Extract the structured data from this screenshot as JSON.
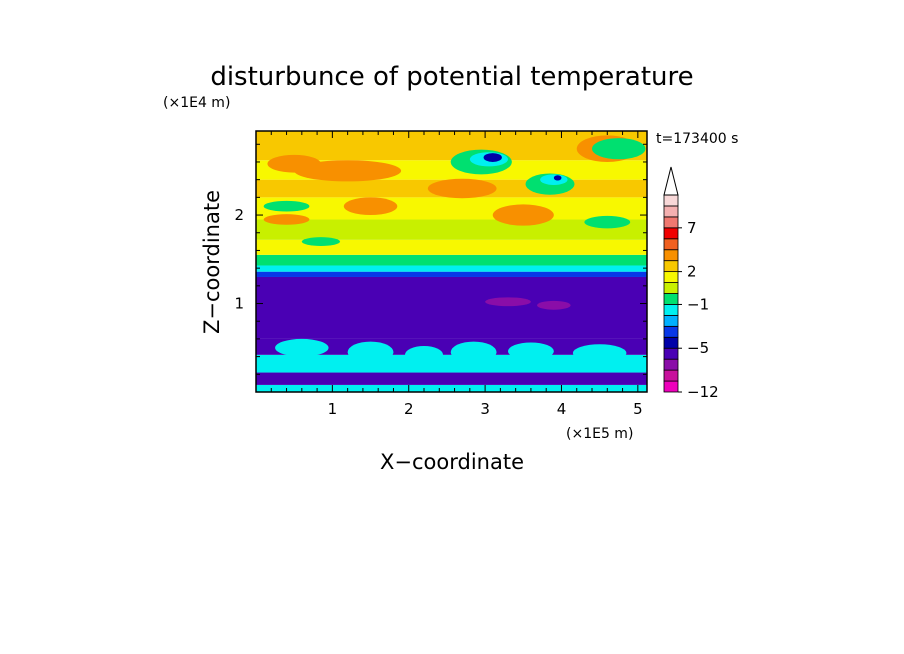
{
  "chart_data": {
    "type": "heatmap",
    "title": "disturbunce of potential temperature",
    "time_label": "t=173400 s",
    "xlabel": "X−coordinate",
    "ylabel": "Z−coordinate",
    "x_scale_label": "(×1E5 m)",
    "y_scale_label": "(×1E4 m)",
    "xlim": [
      0,
      5.12
    ],
    "ylim": [
      0,
      2.95
    ],
    "x_ticks": [
      {
        "value": 1,
        "label": "1"
      },
      {
        "value": 2,
        "label": "2"
      },
      {
        "value": 3,
        "label": "3"
      },
      {
        "value": 4,
        "label": "4"
      },
      {
        "value": 5,
        "label": "5"
      }
    ],
    "y_ticks": [
      {
        "value": 1,
        "label": "1"
      },
      {
        "value": 2,
        "label": "2"
      }
    ],
    "colorbar": {
      "levels": [
        -12,
        -11,
        -9,
        -7,
        -5,
        -4,
        -3,
        -2,
        -1,
        0,
        1,
        2,
        3,
        5,
        6,
        7,
        9,
        11,
        13
      ],
      "colors": [
        "#ee00bb",
        "#c8119c",
        "#8a0da8",
        "#4a00b4",
        "#0000a8",
        "#0838e8",
        "#00b0ff",
        "#00f0f0",
        "#00e070",
        "#c8f000",
        "#f8f800",
        "#f8c800",
        "#f89000",
        "#f06020",
        "#f00000",
        "#f07870",
        "#f4b0b0",
        "#f8d8d8"
      ],
      "tick_labels": [
        {
          "value": -12,
          "label": "−12"
        },
        {
          "value": -5,
          "label": "−5"
        },
        {
          "value": -1,
          "label": "−1"
        },
        {
          "value": 2,
          "label": "2"
        },
        {
          "value": 7,
          "label": "7"
        }
      ],
      "extend": "max"
    },
    "bands": [
      {
        "z": [
          0.0,
          0.08
        ],
        "value": -1.5
      },
      {
        "z": [
          0.08,
          0.22
        ],
        "value": -5.5
      },
      {
        "z": [
          0.22,
          0.42
        ],
        "value": -1.5
      },
      {
        "z": [
          0.42,
          0.6
        ],
        "value": -5.5
      },
      {
        "z": [
          0.6,
          1.3
        ],
        "value": -5.5
      },
      {
        "z": [
          1.3,
          1.36
        ],
        "value": -3.5
      },
      {
        "z": [
          1.36,
          1.43
        ],
        "value": -1.5
      },
      {
        "z": [
          1.43,
          1.55
        ],
        "value": -0.5
      },
      {
        "z": [
          1.55,
          1.72
        ],
        "value": 1.5
      },
      {
        "z": [
          1.72,
          1.95
        ],
        "value": 0.5
      },
      {
        "z": [
          1.95,
          2.2
        ],
        "value": 1.5
      },
      {
        "z": [
          2.2,
          2.4
        ],
        "value": 2.5
      },
      {
        "z": [
          2.4,
          2.62
        ],
        "value": 1.5
      },
      {
        "z": [
          2.62,
          2.95
        ],
        "value": 2.5
      }
    ],
    "features": [
      {
        "x": 0.6,
        "z": 0.5,
        "rx": 0.35,
        "rz": 0.1,
        "value": -1.5
      },
      {
        "x": 1.5,
        "z": 0.45,
        "rx": 0.3,
        "rz": 0.12,
        "value": -1.5
      },
      {
        "x": 2.2,
        "z": 0.42,
        "rx": 0.25,
        "rz": 0.1,
        "value": -1.5
      },
      {
        "x": 2.85,
        "z": 0.45,
        "rx": 0.3,
        "rz": 0.12,
        "value": -1.5
      },
      {
        "x": 3.6,
        "z": 0.46,
        "rx": 0.3,
        "rz": 0.1,
        "value": -1.5
      },
      {
        "x": 4.5,
        "z": 0.44,
        "rx": 0.35,
        "rz": 0.1,
        "value": -1.5
      },
      {
        "x": 3.3,
        "z": 1.02,
        "rx": 0.3,
        "rz": 0.05,
        "value": -7.5
      },
      {
        "x": 3.9,
        "z": 0.98,
        "rx": 0.22,
        "rz": 0.05,
        "value": -7.5
      },
      {
        "x": 2.8,
        "z": 1.08,
        "rx": 0.12,
        "rz": 0.03,
        "value": -6.5
      },
      {
        "x": 1.2,
        "z": 2.5,
        "rx": 0.7,
        "rz": 0.12,
        "value": 4.5
      },
      {
        "x": 0.5,
        "z": 2.58,
        "rx": 0.35,
        "rz": 0.1,
        "value": 4.5
      },
      {
        "x": 2.7,
        "z": 2.3,
        "rx": 0.45,
        "rz": 0.11,
        "value": 4.5
      },
      {
        "x": 1.5,
        "z": 2.1,
        "rx": 0.35,
        "rz": 0.1,
        "value": 3.5
      },
      {
        "x": 3.5,
        "z": 2.0,
        "rx": 0.4,
        "rz": 0.12,
        "value": 3.5
      },
      {
        "x": 4.6,
        "z": 2.75,
        "rx": 0.4,
        "rz": 0.15,
        "value": 3.5
      },
      {
        "x": 2.95,
        "z": 2.6,
        "rx": 0.4,
        "rz": 0.14,
        "value": -0.5
      },
      {
        "x": 3.05,
        "z": 2.63,
        "rx": 0.25,
        "rz": 0.08,
        "value": -1.5
      },
      {
        "x": 3.1,
        "z": 2.65,
        "rx": 0.12,
        "rz": 0.05,
        "value": -4.5
      },
      {
        "x": 3.85,
        "z": 2.35,
        "rx": 0.32,
        "rz": 0.12,
        "value": -0.5
      },
      {
        "x": 3.9,
        "z": 2.4,
        "rx": 0.18,
        "rz": 0.06,
        "value": -1.5
      },
      {
        "x": 3.95,
        "z": 2.42,
        "rx": 0.05,
        "rz": 0.03,
        "value": -4.5
      },
      {
        "x": 4.75,
        "z": 2.75,
        "rx": 0.35,
        "rz": 0.12,
        "value": -0.5
      },
      {
        "x": 0.4,
        "z": 2.1,
        "rx": 0.3,
        "rz": 0.06,
        "value": -0.5
      },
      {
        "x": 0.85,
        "z": 1.7,
        "rx": 0.25,
        "rz": 0.05,
        "value": -0.5
      },
      {
        "x": 4.6,
        "z": 1.92,
        "rx": 0.3,
        "rz": 0.07,
        "value": -0.5
      },
      {
        "x": 0.4,
        "z": 1.95,
        "rx": 0.3,
        "rz": 0.06,
        "value": 3.5
      },
      {
        "x": 2.3,
        "z": 2.05,
        "rx": 0.3,
        "rz": 0.07,
        "value": 1.5
      }
    ]
  }
}
